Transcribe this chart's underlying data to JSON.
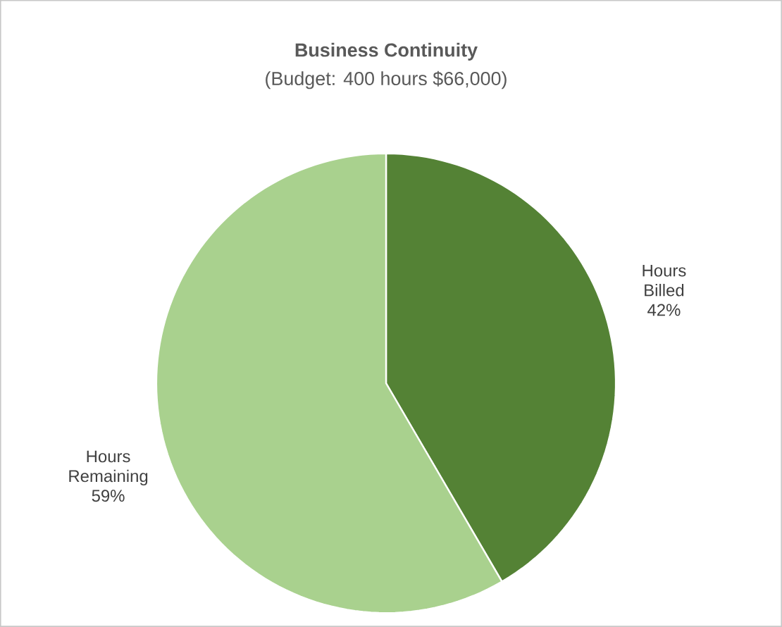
{
  "chart_data": {
    "type": "pie",
    "title": "Business Continuity",
    "subtitle": "(Budget: 400 hours $66,000)",
    "categories": [
      "Hours Billed",
      "Hours Remaining"
    ],
    "values": [
      42,
      59
    ],
    "colors": [
      "#548235",
      "#a9d18e"
    ],
    "value_labels": [
      "42%",
      "59%"
    ]
  }
}
